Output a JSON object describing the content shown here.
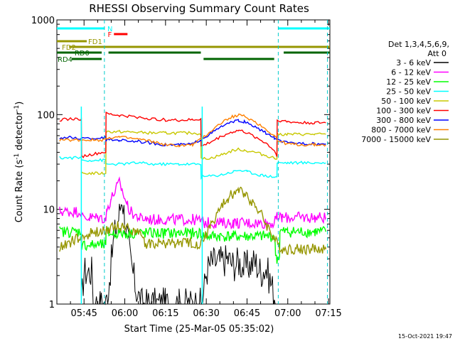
{
  "chart_data": {
    "type": "line",
    "title": "RHESSI Observing Summary Count Rates",
    "xlabel": "Start Time (25-Mar-05 05:35:02)",
    "ylabel": "Count Rate (s",
    "ylabel_sup": "-1",
    "ylabel_tail": " detector",
    "ylabel_end": ")",
    "timestamp": "15-Oct-2021 19:47",
    "y_scale": "log",
    "ylim": [
      1,
      1000
    ],
    "xlim_minutes": [
      35.0,
      135.5
    ],
    "x_tick_labels": [
      "05:45",
      "06:00",
      "06:15",
      "06:30",
      "06:45",
      "07:00",
      "07:15"
    ],
    "x_tick_minutes": [
      45,
      60,
      75,
      90,
      105,
      120,
      135
    ],
    "y_tick_labels": [
      "1",
      "10",
      "100",
      "1000"
    ],
    "legend_header": [
      "Det 1,3,4,5,6,9,",
      "Att 0"
    ],
    "legend_placement": "right",
    "series": [
      {
        "name": "3 - 6 keV",
        "color": "#000000",
        "x": [
          44,
          45,
          48,
          48.5,
          51,
          53,
          54,
          56,
          58,
          59,
          60,
          61,
          62,
          64,
          66,
          68,
          70,
          75,
          80,
          85,
          88,
          89,
          90,
          92,
          95,
          98,
          100,
          102,
          104,
          106,
          108,
          110,
          112,
          114,
          116
        ],
        "y": [
          1,
          2.2,
          2.2,
          1,
          1,
          1,
          1.5,
          5,
          9,
          14,
          8,
          5,
          3,
          1.5,
          1,
          1,
          1,
          1,
          1,
          1,
          1,
          1.3,
          2.2,
          2.8,
          2.8,
          3,
          2.6,
          2.8,
          2.4,
          2.6,
          2.8,
          2.2,
          2.4,
          1.6,
          1
        ]
      },
      {
        "name": "6 - 12 keV",
        "color": "#ff00ff",
        "x": [
          36,
          40,
          44,
          44.1,
          47,
          50,
          53,
          53.5,
          55,
          57,
          58,
          59,
          60,
          61,
          62,
          64,
          66,
          68,
          70,
          75,
          80,
          85,
          88,
          89,
          90,
          95,
          100,
          105,
          110,
          115,
          116.1,
          118,
          122,
          126,
          130,
          134
        ],
        "y": [
          9.5,
          9.5,
          9.5,
          8.2,
          8.2,
          8.2,
          8,
          10,
          13,
          17,
          19,
          16,
          13,
          11,
          9.5,
          8.6,
          8,
          8,
          7.8,
          7.8,
          7.8,
          7.8,
          7.6,
          7.2,
          7.2,
          7.2,
          7.2,
          7.2,
          7.2,
          7.2,
          8.2,
          8.2,
          8.2,
          8.2,
          8.2,
          8.2
        ]
      },
      {
        "name": "12 - 25 keV",
        "color": "#00ff00",
        "x": [
          36,
          40,
          44,
          44.1,
          48,
          52,
          53,
          53.1,
          56,
          60,
          65,
          70,
          75,
          80,
          85,
          88,
          89,
          95,
          100,
          105,
          110,
          115,
          115.5,
          116,
          117,
          117.1,
          120,
          125,
          130,
          134
        ],
        "y": [
          5.8,
          5.8,
          5.8,
          4.2,
          4.2,
          4.2,
          4.2,
          5.6,
          5.6,
          5.6,
          5.6,
          5.6,
          5.6,
          5.6,
          5.6,
          5.6,
          5.2,
          5.2,
          5.2,
          5.2,
          5.2,
          5.2,
          3.5,
          3,
          3.2,
          5.8,
          5.8,
          5.8,
          5.8,
          5.8
        ]
      },
      {
        "name": "25 - 50 keV",
        "color": "#00ffff",
        "x": [
          36,
          40,
          44,
          44.1,
          48,
          52,
          53,
          53.1,
          58,
          65,
          70,
          75,
          80,
          85,
          88,
          88.1,
          95,
          100,
          102,
          105,
          110,
          115,
          116,
          116.1,
          120,
          125,
          130,
          134
        ],
        "y": [
          35,
          35,
          35,
          33,
          33,
          33,
          33,
          30,
          30,
          31,
          30,
          30,
          30,
          30,
          30,
          22,
          23,
          25,
          26,
          25,
          23,
          22,
          22,
          31,
          31,
          31,
          31,
          31
        ]
      },
      {
        "name": "50 - 100 keV",
        "color": "#c8c800",
        "x": [
          44,
          48,
          52,
          53,
          53.1,
          58,
          65,
          70,
          75,
          80,
          85,
          88,
          88.1,
          92,
          96,
          100,
          102,
          104,
          108,
          112,
          115,
          116,
          116.1,
          120,
          125,
          130,
          134
        ],
        "y": [
          24,
          24,
          24,
          24,
          66,
          66,
          65,
          64,
          64,
          64,
          64,
          63,
          34,
          35,
          38,
          42,
          43,
          42,
          40,
          37,
          35,
          34,
          62,
          62,
          62,
          62,
          62
        ]
      },
      {
        "name": "100 - 300 keV",
        "color": "#ff0000",
        "x": [
          36,
          40,
          44,
          44.1,
          48,
          52,
          53,
          53.1,
          58,
          65,
          70,
          75,
          80,
          85,
          88,
          88.1,
          92,
          96,
          100,
          102,
          104,
          108,
          112,
          115,
          116,
          116.1,
          120,
          125,
          130,
          134
        ],
        "y": [
          88,
          90,
          90,
          36,
          38,
          40,
          40,
          102,
          98,
          94,
          90,
          88,
          87,
          88,
          90,
          46,
          52,
          60,
          66,
          68,
          66,
          58,
          50,
          42,
          36,
          88,
          84,
          82,
          82,
          82
        ]
      },
      {
        "name": "300 - 800 keV",
        "color": "#0000ff",
        "x": [
          36,
          40,
          44,
          48,
          52,
          53,
          53.1,
          58,
          65,
          70,
          75,
          80,
          85,
          88,
          92,
          96,
          100,
          102,
          104,
          108,
          112,
          115,
          116,
          116.1,
          120,
          125,
          130,
          134
        ],
        "y": [
          57,
          57,
          56,
          56,
          57,
          57,
          54,
          54,
          52,
          50,
          48,
          48,
          49,
          55,
          64,
          76,
          84,
          86,
          84,
          74,
          64,
          57,
          54,
          54,
          50,
          50,
          49,
          49
        ]
      },
      {
        "name": "800 - 7000 keV",
        "color": "#ff8000",
        "x": [
          36,
          40,
          44,
          48,
          52,
          53,
          53.1,
          58,
          65,
          70,
          75,
          80,
          85,
          88,
          92,
          96,
          100,
          102,
          104,
          108,
          112,
          115,
          116,
          116.1,
          120,
          125,
          130,
          134
        ],
        "y": [
          54,
          54,
          54,
          54,
          54,
          55,
          57,
          58,
          55,
          52,
          48,
          47,
          48,
          55,
          68,
          84,
          96,
          99,
          96,
          84,
          70,
          60,
          56,
          53,
          49,
          48,
          48,
          48
        ]
      },
      {
        "name": "7000 - 15000 keV",
        "color": "#969600",
        "x": [
          36,
          40,
          44,
          48,
          52,
          53,
          56,
          60,
          64,
          66,
          68,
          70,
          75,
          80,
          85,
          88,
          90,
          92,
          95,
          98,
          100,
          102,
          104,
          106,
          108,
          110,
          112,
          115,
          116,
          118,
          120,
          125,
          130,
          134
        ],
        "y": [
          4,
          4.5,
          5,
          5.6,
          5.8,
          6.2,
          6.6,
          6.6,
          6,
          5,
          4.4,
          4.4,
          4.4,
          4.4,
          4.4,
          4.3,
          5.5,
          7,
          10,
          13,
          15,
          15.5,
          15,
          13,
          11,
          9,
          7,
          5,
          4.3,
          3.8,
          3.8,
          3.8,
          3.8,
          3.8
        ]
      }
    ],
    "state_bars": [
      {
        "label": "N",
        "color": "#00ffff",
        "level": 0,
        "segments": [
          [
            35.0,
            52.5
          ],
          [
            116.5,
            135.5
          ]
        ]
      },
      {
        "label": "F",
        "color": "#ff0000",
        "level": 1,
        "segments": [
          [
            56.0,
            61.0
          ]
        ]
      },
      {
        "label": "FD1",
        "color": "#969600",
        "level": 2,
        "segments": [
          [
            35.0,
            46.0
          ]
        ]
      },
      {
        "label": "FD2",
        "color": "#969600",
        "level": 3,
        "segments": [
          [
            39.5,
            135.5
          ]
        ]
      },
      {
        "label": "RD0",
        "color": "#006400",
        "level": 4,
        "segments": [
          [
            35.0,
            51.5
          ],
          [
            54.0,
            88.0
          ],
          [
            118.5,
            135.5
          ]
        ]
      },
      {
        "label": "RD4",
        "color": "#006400",
        "level": 5,
        "segments": [
          [
            40.5,
            51.5
          ],
          [
            89.0,
            115.0
          ]
        ]
      }
    ],
    "dashed_markers_minutes": [
      52.5,
      116.5,
      134.6
    ],
    "solid_markers_minutes": [
      44.0,
      88.5
    ]
  }
}
